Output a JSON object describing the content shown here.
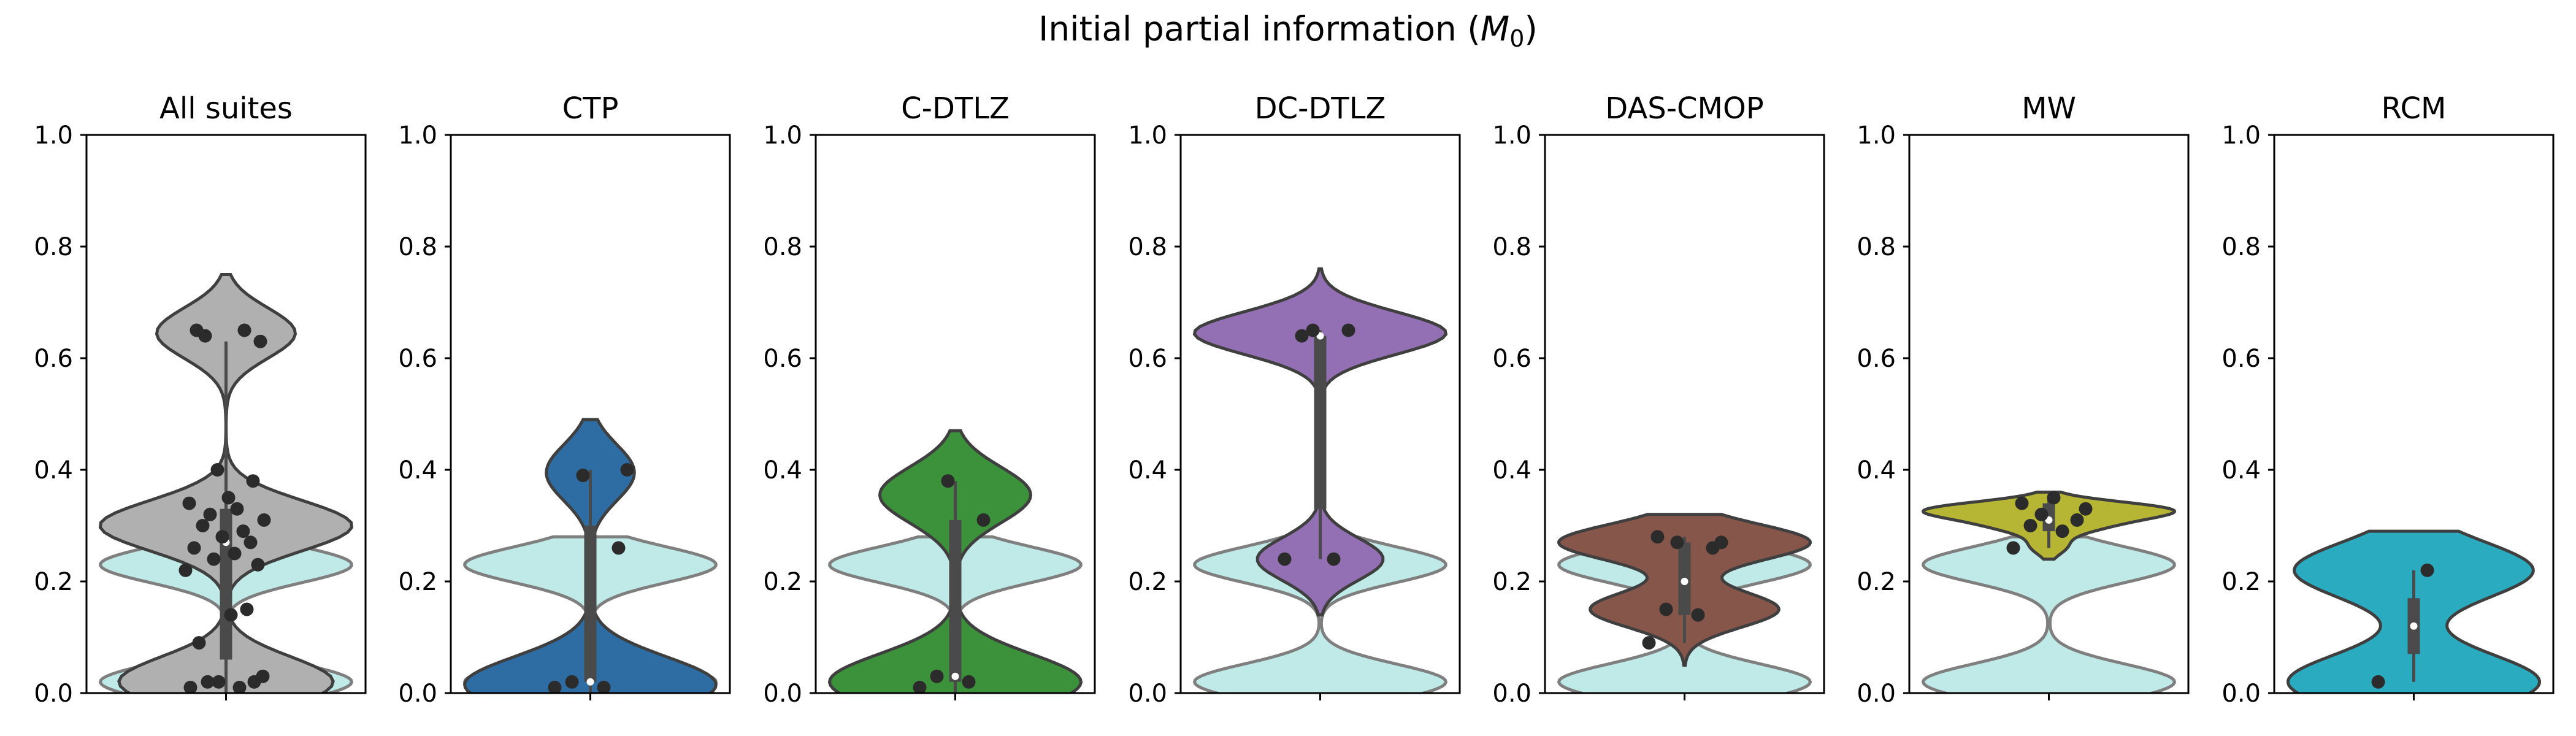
{
  "figure": {
    "title_prefix": "Initial partial information (",
    "title_symbol": "M",
    "title_subscript": "0",
    "title_suffix": ")"
  },
  "chart_data": [
    {
      "type": "violin",
      "title": "All suites",
      "color": "#b0b0b0",
      "ylim": [
        0,
        1
      ],
      "yticks": [
        "0.0",
        "0.2",
        "0.4",
        "0.6",
        "0.8",
        "1.0"
      ],
      "grid": false,
      "background_violin": {
        "color": "#bfeae8",
        "extent": [
          0,
          0.28
        ],
        "modes": [
          0.02,
          0.23
        ]
      },
      "extent": [
        0,
        0.75
      ],
      "box": {
        "q1": 0.06,
        "median": 0.27,
        "q3": 0.33,
        "whisker_low": 0.0,
        "whisker_high": 0.63
      },
      "points": [
        0.01,
        0.01,
        0.02,
        0.02,
        0.02,
        0.03,
        0.09,
        0.14,
        0.15,
        0.22,
        0.23,
        0.24,
        0.25,
        0.26,
        0.27,
        0.28,
        0.29,
        0.3,
        0.31,
        0.32,
        0.33,
        0.34,
        0.35,
        0.38,
        0.4,
        0.63,
        0.64,
        0.65,
        0.65
      ]
    },
    {
      "type": "violin",
      "title": "CTP",
      "color": "#2e6da4",
      "ylim": [
        0,
        1
      ],
      "yticks": [
        "0.0",
        "0.2",
        "0.4",
        "0.6",
        "0.8",
        "1.0"
      ],
      "grid": false,
      "background_violin": {
        "color": "#bfeae8",
        "extent": [
          0,
          0.28
        ],
        "modes": [
          0.02,
          0.23
        ]
      },
      "extent": [
        0,
        0.49
      ],
      "box": {
        "q1": 0.02,
        "median": 0.02,
        "q3": 0.3,
        "whisker_low": 0.0,
        "whisker_high": 0.4
      },
      "points": [
        0.01,
        0.01,
        0.02,
        0.26,
        0.39,
        0.4
      ]
    },
    {
      "type": "violin",
      "title": "C-DTLZ",
      "color": "#3b923a",
      "ylim": [
        0,
        1
      ],
      "yticks": [
        "0.0",
        "0.2",
        "0.4",
        "0.6",
        "0.8",
        "1.0"
      ],
      "grid": false,
      "background_violin": {
        "color": "#bfeae8",
        "extent": [
          0,
          0.28
        ],
        "modes": [
          0.02,
          0.23
        ]
      },
      "extent": [
        0,
        0.47
      ],
      "box": {
        "q1": 0.02,
        "median": 0.03,
        "q3": 0.31,
        "whisker_low": 0.0,
        "whisker_high": 0.38
      },
      "points": [
        0.01,
        0.02,
        0.03,
        0.31,
        0.38
      ]
    },
    {
      "type": "violin",
      "title": "DC-DTLZ",
      "color": "#9370b3",
      "ylim": [
        0,
        1
      ],
      "yticks": [
        "0.0",
        "0.2",
        "0.4",
        "0.6",
        "0.8",
        "1.0"
      ],
      "grid": false,
      "background_violin": {
        "color": "#bfeae8",
        "extent": [
          0,
          0.28
        ],
        "modes": [
          0.02,
          0.23
        ]
      },
      "extent": [
        0.14,
        0.76
      ],
      "box": {
        "q1": 0.33,
        "median": 0.64,
        "q3": 0.64,
        "whisker_low": 0.24,
        "whisker_high": 0.65
      },
      "points": [
        0.24,
        0.24,
        0.64,
        0.65,
        0.65
      ]
    },
    {
      "type": "violin",
      "title": "DAS-CMOP",
      "color": "#86564b",
      "ylim": [
        0,
        1
      ],
      "yticks": [
        "0.0",
        "0.2",
        "0.4",
        "0.6",
        "0.8",
        "1.0"
      ],
      "grid": false,
      "background_violin": {
        "color": "#bfeae8",
        "extent": [
          0,
          0.28
        ],
        "modes": [
          0.02,
          0.23
        ]
      },
      "extent": [
        0.05,
        0.32
      ],
      "box": {
        "q1": 0.14,
        "median": 0.2,
        "q3": 0.27,
        "whisker_low": 0.09,
        "whisker_high": 0.28
      },
      "points": [
        0.09,
        0.14,
        0.15,
        0.26,
        0.27,
        0.27,
        0.28
      ]
    },
    {
      "type": "violin",
      "title": "MW",
      "color": "#b6b634",
      "ylim": [
        0,
        1
      ],
      "yticks": [
        "0.0",
        "0.2",
        "0.4",
        "0.6",
        "0.8",
        "1.0"
      ],
      "grid": false,
      "background_violin": {
        "color": "#bfeae8",
        "extent": [
          0,
          0.28
        ],
        "modes": [
          0.02,
          0.23
        ]
      },
      "extent": [
        0.24,
        0.36
      ],
      "box": {
        "q1": 0.29,
        "median": 0.31,
        "q3": 0.34,
        "whisker_low": 0.26,
        "whisker_high": 0.35
      },
      "points": [
        0.26,
        0.29,
        0.3,
        0.31,
        0.32,
        0.33,
        0.34,
        0.35
      ]
    },
    {
      "type": "violin",
      "title": "RCM",
      "color": "#2aabc0",
      "ylim": [
        0,
        1
      ],
      "yticks": [
        "0.0",
        "0.2",
        "0.4",
        "0.6",
        "0.8",
        "1.0"
      ],
      "grid": false,
      "background_violin": null,
      "extent": [
        0,
        0.29
      ],
      "box": {
        "q1": 0.07,
        "median": 0.12,
        "q3": 0.17,
        "whisker_low": 0.02,
        "whisker_high": 0.22
      },
      "points": [
        0.02,
        0.22
      ]
    }
  ]
}
